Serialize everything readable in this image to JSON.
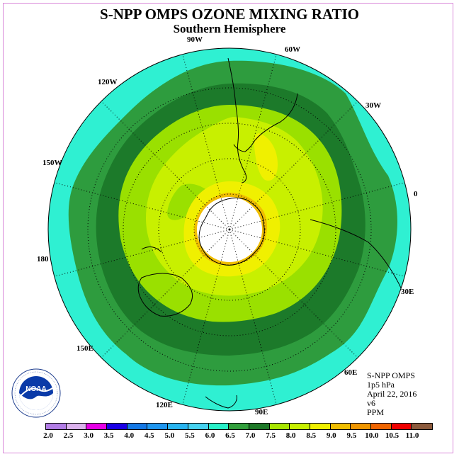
{
  "title": "S-NPP OMPS OZONE MIXING RATIO",
  "subtitle": "Southern Hemisphere",
  "meridian_labels": {
    "m90w": "90W",
    "m60w": "60W",
    "m30w": "30W",
    "m120w": "120W",
    "m150w": "150W",
    "m0": "0",
    "m180": "180",
    "m30e": "30E",
    "m150e": "150E",
    "m60e": "60E",
    "m120e": "120E",
    "m90e": "90E"
  },
  "info": {
    "instrument": "S-NPP OMPS",
    "level": "1p5 hPa",
    "date": "April 22, 2016",
    "version": "v6",
    "units": "PPM"
  },
  "logo": {
    "text": "NOAA",
    "icon": "noaa-logo"
  },
  "colorbar": {
    "ticks": [
      "2.0",
      "2.5",
      "3.0",
      "3.5",
      "4.0",
      "4.5",
      "5.0",
      "5.5",
      "6.0",
      "6.5",
      "7.0",
      "7.5",
      "8.0",
      "8.5",
      "9.0",
      "9.5",
      "10.0",
      "10.5",
      "11.0"
    ],
    "colors": [
      "#b27de6",
      "#dcb2ee",
      "#e600e6",
      "#1a00e6",
      "#1478e6",
      "#1e96f0",
      "#28b4f0",
      "#46d2f0",
      "#28f0c8",
      "#32a03c",
      "#1e7a28",
      "#a8e600",
      "#c8f000",
      "#f0f000",
      "#f0be00",
      "#f09600",
      "#f06400",
      "#f00000",
      "#8c5a3c"
    ]
  },
  "map_colors": {
    "cyan": "#2ff0d2",
    "green": "#2e9c3e",
    "dark_green": "#1c7a2a",
    "lime": "#9ae000",
    "yellow_green": "#c8f000",
    "yellow": "#f0f000",
    "orange": "#f0be00",
    "pole": "#ffffff"
  }
}
